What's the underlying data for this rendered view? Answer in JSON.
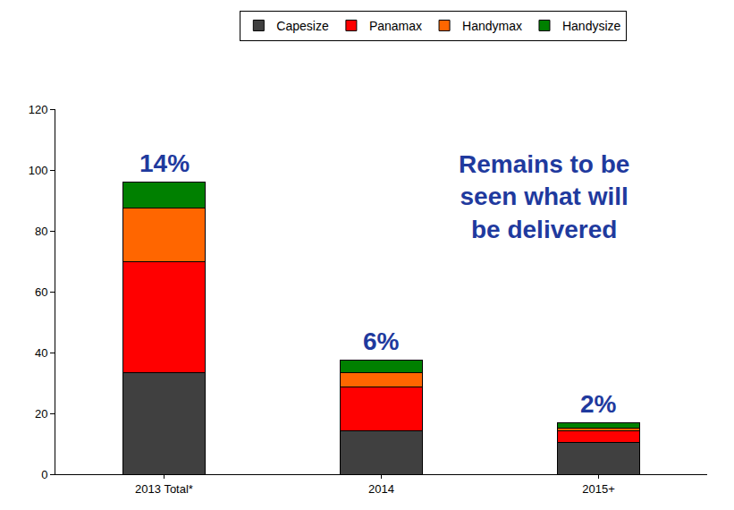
{
  "chart_data": {
    "type": "bar",
    "stacked": true,
    "categories": [
      "2013 Total*",
      "2014",
      "2015+"
    ],
    "series": [
      {
        "name": "Capesize",
        "color": "#404040",
        "values": [
          33.5,
          14.3,
          10.5
        ]
      },
      {
        "name": "Panamax",
        "color": "#ff0000",
        "values": [
          36.5,
          14.5,
          3.7
        ]
      },
      {
        "name": "Handymax",
        "color": "#ff6600",
        "values": [
          17.5,
          4.5,
          1.0
        ]
      },
      {
        "name": "Handysize",
        "color": "#008000",
        "values": [
          8.5,
          4.2,
          1.6
        ]
      }
    ],
    "ylim": [
      0,
      120
    ],
    "yticks": [
      0,
      20,
      40,
      60,
      80,
      100,
      120
    ],
    "grid": false,
    "legend": "top",
    "annotations": [
      {
        "text": "14%",
        "category": "2013 Total*"
      },
      {
        "text": "6%",
        "category": "2014"
      },
      {
        "text": "2%",
        "category": "2015+"
      },
      {
        "text": "Remains to be seen what will be delivered"
      }
    ]
  }
}
